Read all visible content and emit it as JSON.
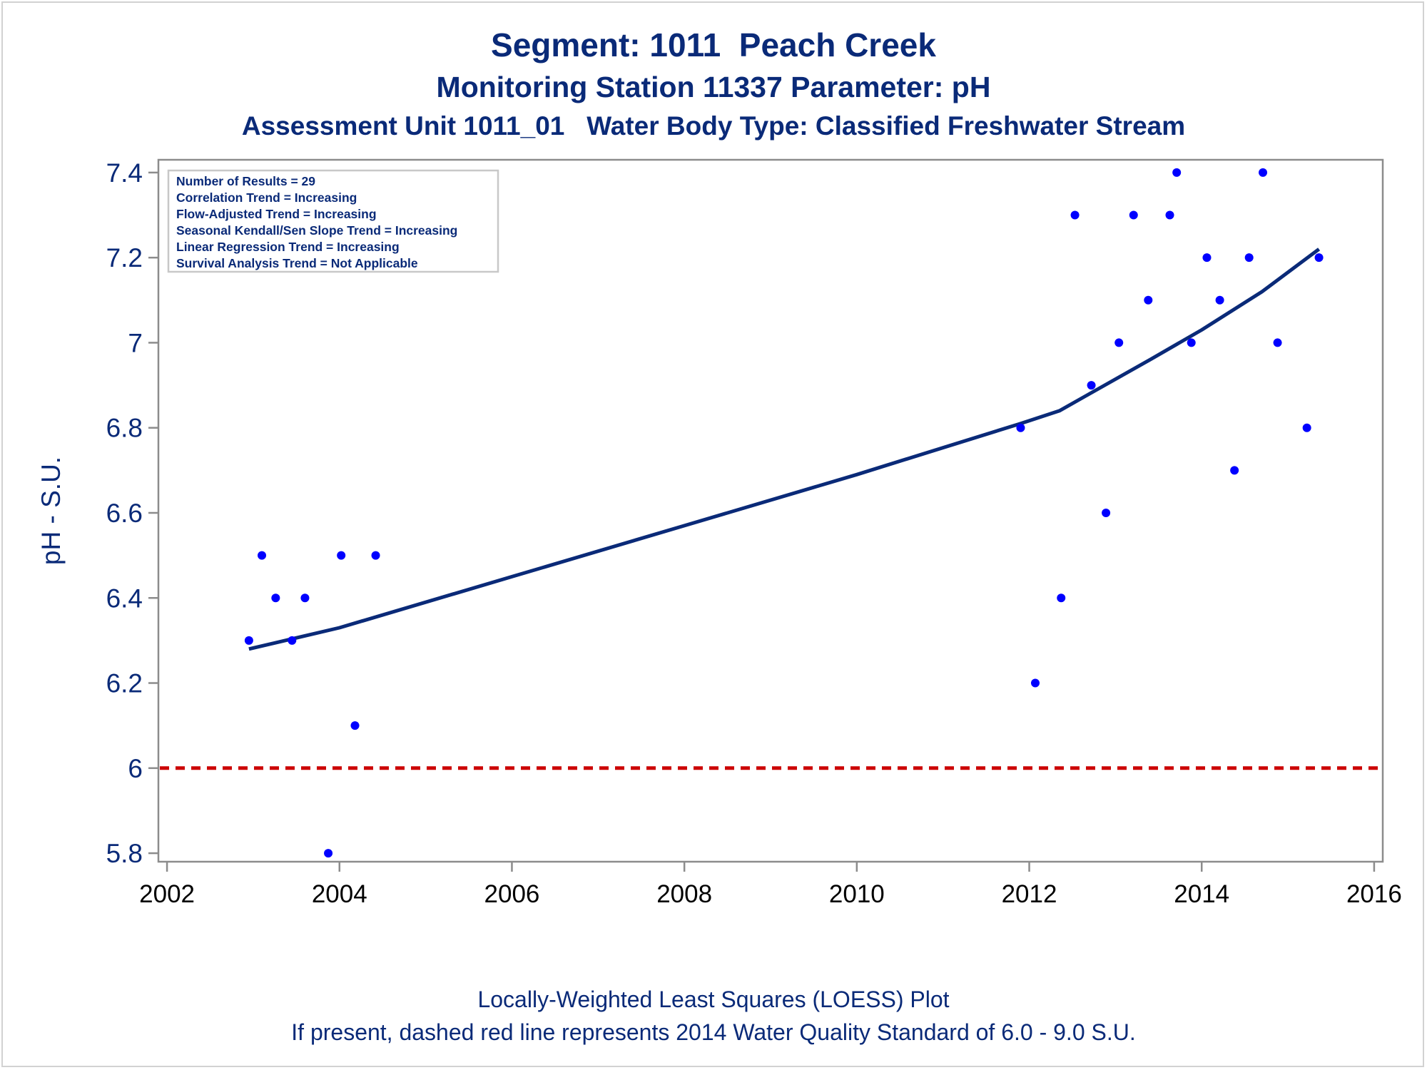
{
  "titles": {
    "line1": "Segment: 1011  Peach Creek",
    "line2": "Monitoring Station 11337 Parameter: pH",
    "line3": "Assessment Unit 1011_01   Water Body Type: Classified Freshwater Stream"
  },
  "footnotes": {
    "line1": "Locally-Weighted Least Squares (LOESS) Plot",
    "line2": "If present, dashed red line represents 2014 Water Quality Standard of 6.0 - 9.0 S.U."
  },
  "colors": {
    "text": "#0a2a78",
    "points": "#0000ff",
    "loess": "#0a2a78",
    "standard": "#cc0000",
    "axis": "#8c8c8c"
  },
  "chart_data": {
    "type": "scatter",
    "xlabel": "",
    "ylabel": "pH - S.U.",
    "xlim": [
      2001.9,
      2016.1
    ],
    "ylim": [
      5.78,
      7.43
    ],
    "xticks": [
      2002,
      2004,
      2006,
      2008,
      2010,
      2012,
      2014,
      2016
    ],
    "yticks": [
      5.8,
      6,
      6.2,
      6.4,
      6.6,
      6.8,
      7,
      7.2,
      7.4
    ],
    "ytick_labels": [
      "5.8",
      "6",
      "6.2",
      "6.4",
      "6.6",
      "6.8",
      "7",
      "7.2",
      "7.4"
    ],
    "grid": false,
    "legend_box": [
      "Number of Results = 29",
      "Correlation Trend = Increasing",
      "Flow-Adjusted Trend = Increasing",
      "Seasonal Kendall/Sen Slope Trend = Increasing",
      "Linear Regression Trend = Increasing",
      "Survival Analysis Trend = Not Applicable"
    ],
    "legend_placement": "top-left",
    "points": [
      {
        "x": 2002.95,
        "y": 6.3
      },
      {
        "x": 2003.1,
        "y": 6.5
      },
      {
        "x": 2003.26,
        "y": 6.4
      },
      {
        "x": 2003.45,
        "y": 6.3
      },
      {
        "x": 2003.6,
        "y": 6.4
      },
      {
        "x": 2003.87,
        "y": 5.8
      },
      {
        "x": 2004.02,
        "y": 6.5
      },
      {
        "x": 2004.18,
        "y": 6.1
      },
      {
        "x": 2004.42,
        "y": 6.5
      },
      {
        "x": 2011.9,
        "y": 6.8
      },
      {
        "x": 2012.07,
        "y": 6.2
      },
      {
        "x": 2012.37,
        "y": 6.4
      },
      {
        "x": 2012.53,
        "y": 7.3
      },
      {
        "x": 2012.72,
        "y": 6.9
      },
      {
        "x": 2012.89,
        "y": 6.6
      },
      {
        "x": 2013.04,
        "y": 7.0
      },
      {
        "x": 2013.21,
        "y": 7.3
      },
      {
        "x": 2013.38,
        "y": 7.1
      },
      {
        "x": 2013.63,
        "y": 7.3
      },
      {
        "x": 2013.71,
        "y": 7.4
      },
      {
        "x": 2013.88,
        "y": 7.0
      },
      {
        "x": 2014.06,
        "y": 7.2
      },
      {
        "x": 2014.21,
        "y": 7.1
      },
      {
        "x": 2014.38,
        "y": 6.7
      },
      {
        "x": 2014.55,
        "y": 7.2
      },
      {
        "x": 2014.71,
        "y": 7.4
      },
      {
        "x": 2014.88,
        "y": 7.0
      },
      {
        "x": 2015.22,
        "y": 6.8
      },
      {
        "x": 2015.36,
        "y": 7.2
      }
    ],
    "loess_line": [
      {
        "x": 2002.95,
        "y": 6.28
      },
      {
        "x": 2004.0,
        "y": 6.33
      },
      {
        "x": 2006.0,
        "y": 6.45
      },
      {
        "x": 2008.0,
        "y": 6.57
      },
      {
        "x": 2010.0,
        "y": 6.69
      },
      {
        "x": 2011.9,
        "y": 6.81
      },
      {
        "x": 2012.35,
        "y": 6.84
      },
      {
        "x": 2012.7,
        "y": 6.88
      },
      {
        "x": 2013.4,
        "y": 6.96
      },
      {
        "x": 2014.0,
        "y": 7.03
      },
      {
        "x": 2014.7,
        "y": 7.12
      },
      {
        "x": 2015.36,
        "y": 7.22
      }
    ],
    "reference_line": {
      "y": 6.0,
      "style": "dashed"
    }
  }
}
